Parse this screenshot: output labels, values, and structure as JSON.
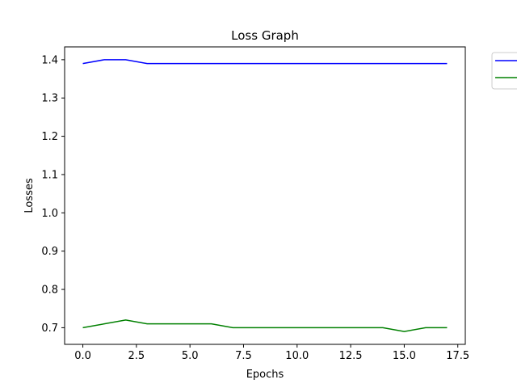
{
  "chart_data": {
    "type": "line",
    "title": "Loss Graph",
    "xlabel": "Epochs",
    "ylabel": "Losses",
    "xlim": [
      -0.85,
      17.85
    ],
    "ylim": [
      0.6565,
      1.4335
    ],
    "xticks": [
      0.0,
      2.5,
      5.0,
      7.5,
      10.0,
      12.5,
      15.0,
      17.5
    ],
    "xtick_labels": [
      "0.0",
      "2.5",
      "5.0",
      "7.5",
      "10.0",
      "12.5",
      "15.0",
      "17.5"
    ],
    "yticks": [
      0.7,
      0.8,
      0.9,
      1.0,
      1.1,
      1.2,
      1.3,
      1.4
    ],
    "ytick_labels": [
      "0.7",
      "0.8",
      "0.9",
      "1.0",
      "1.1",
      "1.2",
      "1.3",
      "1.4"
    ],
    "grid": false,
    "legend_position": "outside-top-right",
    "x": [
      0,
      1,
      2,
      3,
      4,
      5,
      6,
      7,
      8,
      9,
      10,
      11,
      12,
      13,
      14,
      15,
      16,
      17
    ],
    "series": [
      {
        "color": "#0000ff",
        "values": [
          1.39,
          1.4,
          1.4,
          1.39,
          1.39,
          1.39,
          1.39,
          1.39,
          1.39,
          1.39,
          1.39,
          1.39,
          1.39,
          1.39,
          1.39,
          1.39,
          1.39,
          1.39
        ]
      },
      {
        "color": "#008000",
        "values": [
          0.7,
          0.71,
          0.72,
          0.71,
          0.71,
          0.71,
          0.71,
          0.7,
          0.7,
          0.7,
          0.7,
          0.7,
          0.7,
          0.7,
          0.7,
          0.69,
          0.7,
          0.7
        ]
      }
    ]
  }
}
